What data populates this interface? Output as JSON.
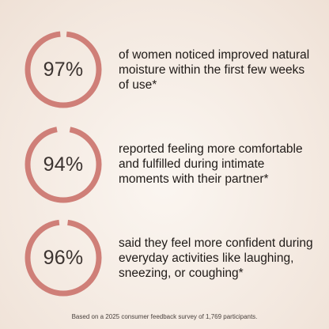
{
  "colors": {
    "ring": "#cf7f78",
    "text": "#1f1a17"
  },
  "stats": [
    {
      "value": 0.97,
      "label": "97%",
      "text": "of women noticed improved natural moisture within the first few weeks of use*"
    },
    {
      "value": 0.94,
      "label": "94%",
      "text": "reported feeling more comfortable and fulfilled during intimate moments with their partner*"
    },
    {
      "value": 0.96,
      "label": "96%",
      "text": "said they feel more confident during everyday activities like laughing, sneezing, or coughing*"
    }
  ],
  "footnote": "Based on a 2025 consumer feedback survey of 1,769 participants."
}
